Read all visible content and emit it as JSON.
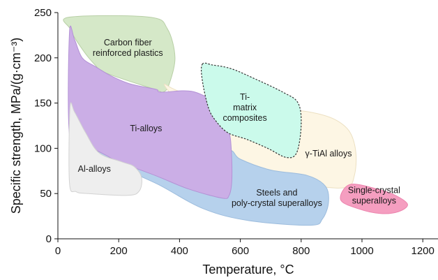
{
  "chart_data": {
    "type": "area",
    "xlabel": "Temperature, °C",
    "ylabel": "Specific strength, MPa/(g·cm⁻³)",
    "xlim": [
      0,
      1250
    ],
    "ylim": [
      0,
      250
    ],
    "x_ticks": [
      "0",
      "200",
      "400",
      "600",
      "800",
      "1000",
      "1200"
    ],
    "y_ticks": [
      "0",
      "50",
      "100",
      "150",
      "200",
      "250"
    ],
    "regions": [
      {
        "name": "Carbon fiber reinforced plastics",
        "lines": [
          "Carbon fiber",
          "reinforced plastics"
        ],
        "label_at": [
          230,
          211
        ],
        "color": "#d5e8c8",
        "stroke": "#b8cfa6",
        "dashed": false,
        "points": [
          [
            38,
            245
          ],
          [
            300,
            245
          ],
          [
            360,
            232
          ],
          [
            385,
            200
          ],
          [
            365,
            170
          ],
          [
            345,
            162
          ],
          [
            320,
            165
          ],
          [
            160,
            183
          ],
          [
            120,
            193
          ],
          [
            75,
            212
          ],
          [
            40,
            232
          ]
        ]
      },
      {
        "name": "γ-TiAl alloys",
        "lines": [
          "γ-TiAl alloys"
        ],
        "label_at": [
          890,
          94
        ],
        "color": "#fdf6e4",
        "stroke": "#ece0c2",
        "dashed": false,
        "points": [
          [
            350,
            170
          ],
          [
            400,
            163
          ],
          [
            560,
            150
          ],
          [
            700,
            145
          ],
          [
            830,
            140
          ],
          [
            910,
            132
          ],
          [
            960,
            118
          ],
          [
            980,
            95
          ],
          [
            975,
            70
          ],
          [
            950,
            57
          ],
          [
            850,
            58
          ],
          [
            700,
            65
          ],
          [
            580,
            88
          ],
          [
            480,
            115
          ],
          [
            420,
            140
          ]
        ]
      },
      {
        "name": "Single-crystal superalloys",
        "lines": [
          "Single-crystal",
          "superalloys"
        ],
        "label_at": [
          1040,
          48
        ],
        "color": "#f59ec0",
        "stroke": "#ec83ad",
        "dashed": false,
        "points": [
          [
            960,
            60
          ],
          [
            1050,
            55
          ],
          [
            1110,
            48
          ],
          [
            1150,
            38
          ],
          [
            1120,
            30
          ],
          [
            1060,
            28
          ],
          [
            990,
            33
          ],
          [
            930,
            43
          ]
        ]
      },
      {
        "name": "Steels and poly-crystal superalloys",
        "lines": [
          "Steels and",
          "poly-crystal superalloys"
        ],
        "label_at": [
          720,
          45
        ],
        "color": "#b6d1ec",
        "stroke": "#9cbcdd",
        "dashed": false,
        "points": [
          [
            115,
            105
          ],
          [
            260,
            95
          ],
          [
            450,
            87
          ],
          [
            560,
            98
          ],
          [
            600,
            88
          ],
          [
            700,
            76
          ],
          [
            820,
            70
          ],
          [
            880,
            58
          ],
          [
            890,
            40
          ],
          [
            870,
            22
          ],
          [
            830,
            15
          ],
          [
            630,
            20
          ],
          [
            480,
            33
          ],
          [
            330,
            60
          ],
          [
            200,
            80
          ],
          [
            130,
            95
          ]
        ]
      },
      {
        "name": "Ti-alloys",
        "lines": [
          "Ti-alloys"
        ],
        "label_at": [
          290,
          122
        ],
        "color": "#cbaee6",
        "stroke": "#b392d5",
        "dashed": false,
        "points": [
          [
            38,
            228
          ],
          [
            55,
            220
          ],
          [
            80,
            200
          ],
          [
            125,
            190
          ],
          [
            175,
            180
          ],
          [
            230,
            172
          ],
          [
            280,
            168
          ],
          [
            325,
            165
          ],
          [
            340,
            162
          ],
          [
            440,
            163
          ],
          [
            520,
            150
          ],
          [
            540,
            140
          ],
          [
            562,
            120
          ],
          [
            570,
            100
          ],
          [
            572,
            65
          ],
          [
            563,
            48
          ],
          [
            540,
            45
          ],
          [
            430,
            55
          ],
          [
            320,
            70
          ],
          [
            200,
            85
          ],
          [
            160,
            92
          ],
          [
            100,
            102
          ],
          [
            40,
            110
          ]
        ]
      },
      {
        "name": "Ti-matrix composites",
        "lines": [
          "Ti-",
          "matrix",
          "composites"
        ],
        "label_at": [
          615,
          145
        ],
        "color": "#cbfaeb",
        "stroke": "#333333",
        "dashed": true,
        "points": [
          [
            475,
            193
          ],
          [
            510,
            192
          ],
          [
            570,
            188
          ],
          [
            640,
            178
          ],
          [
            740,
            162
          ],
          [
            790,
            150
          ],
          [
            800,
            125
          ],
          [
            785,
            95
          ],
          [
            750,
            90
          ],
          [
            690,
            100
          ],
          [
            620,
            110
          ],
          [
            560,
            117
          ],
          [
            520,
            130
          ],
          [
            495,
            145
          ],
          [
            475,
            175
          ]
        ]
      },
      {
        "name": "Al-alloys",
        "lines": [
          "Al-alloys"
        ],
        "label_at": [
          120,
          77
        ],
        "color": "#eeeeee",
        "stroke": "#d2d2d2",
        "dashed": false,
        "points": [
          [
            40,
            145
          ],
          [
            55,
            140
          ],
          [
            90,
            118
          ],
          [
            135,
            95
          ],
          [
            210,
            85
          ],
          [
            250,
            80
          ],
          [
            275,
            68
          ],
          [
            268,
            53
          ],
          [
            230,
            48
          ],
          [
            100,
            50
          ],
          [
            60,
            52
          ],
          [
            38,
            62
          ]
        ]
      }
    ]
  }
}
